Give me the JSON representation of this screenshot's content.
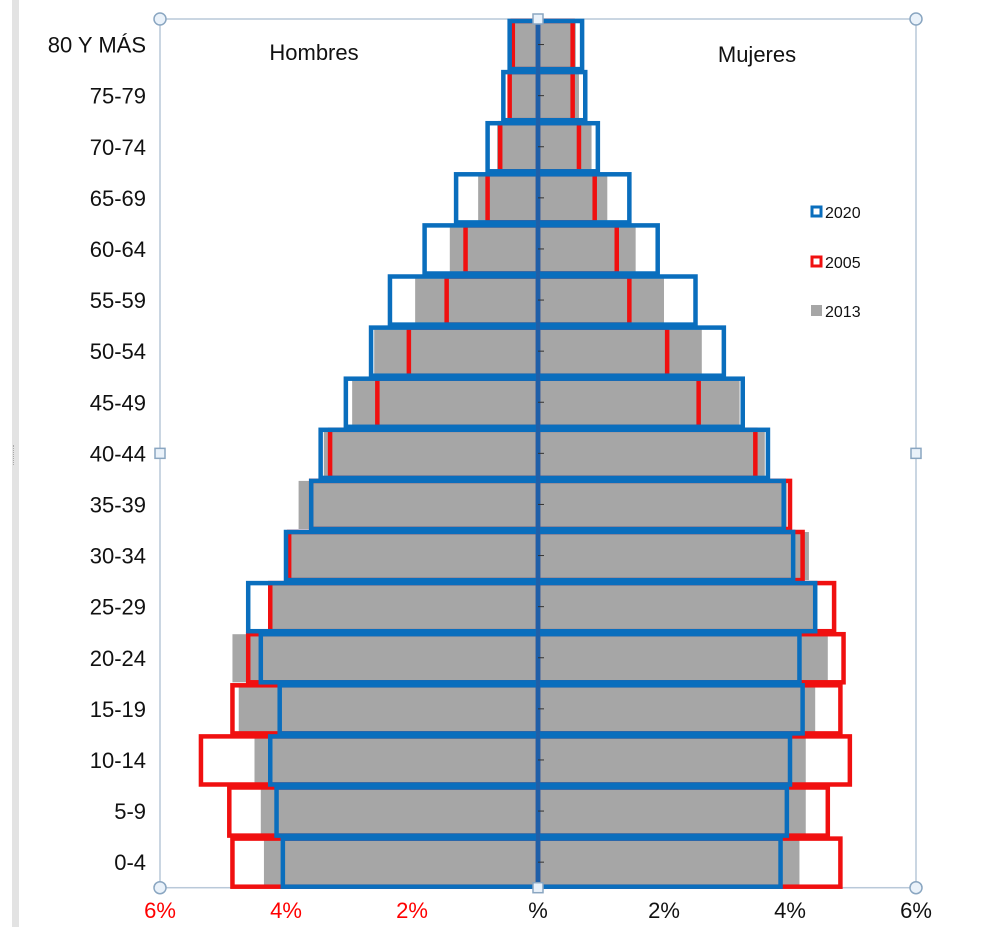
{
  "chart_data": {
    "type": "bar",
    "orientation": "horizontal",
    "subtype": "population-pyramid",
    "categories": [
      "0-4",
      "5-9",
      "10-14",
      "15-19",
      "20-24",
      "25-29",
      "30-34",
      "35-39",
      "40-44",
      "45-49",
      "50-54",
      "55-59",
      "60-64",
      "65-69",
      "70-74",
      "75-79",
      "80 Y MÁS"
    ],
    "side_labels": {
      "left": "Hombres",
      "right": "Mujeres"
    },
    "x_ticks": {
      "left": [
        "6%",
        "4%",
        "2%"
      ],
      "center": "%",
      "right": [
        "2%",
        "4%",
        "6%"
      ]
    },
    "xlim": [
      -6,
      6
    ],
    "grid": false,
    "legend": {
      "position": "right",
      "entries": [
        "2020",
        "2005",
        "2013"
      ]
    },
    "series": [
      {
        "name": "2020",
        "color": "#0a6ebd",
        "style": "outline",
        "men": [
          4.05,
          4.15,
          4.25,
          4.1,
          4.4,
          4.6,
          4.0,
          3.6,
          3.45,
          3.05,
          2.65,
          2.35,
          1.8,
          1.3,
          0.8,
          0.55,
          0.45
        ],
        "women": [
          3.85,
          3.95,
          4.0,
          4.2,
          4.15,
          4.4,
          4.05,
          3.9,
          3.65,
          3.25,
          2.95,
          2.5,
          1.9,
          1.45,
          0.95,
          0.75,
          0.7
        ]
      },
      {
        "name": "2005",
        "color": "#f01010",
        "style": "outline",
        "men": [
          4.85,
          4.9,
          5.35,
          4.85,
          4.6,
          4.25,
          3.95,
          3.6,
          3.3,
          2.55,
          2.05,
          1.45,
          1.15,
          0.8,
          0.6,
          0.45,
          0.4
        ],
        "women": [
          4.8,
          4.6,
          4.95,
          4.8,
          4.85,
          4.7,
          4.2,
          4.0,
          3.45,
          2.55,
          2.05,
          1.45,
          1.25,
          0.9,
          0.65,
          0.55,
          0.55
        ]
      },
      {
        "name": "2013",
        "color": "#a6a6a6",
        "style": "fill",
        "men": [
          4.35,
          4.4,
          4.5,
          4.75,
          4.85,
          4.25,
          3.95,
          3.8,
          3.4,
          2.95,
          2.6,
          1.95,
          1.4,
          0.95,
          0.65,
          0.45,
          0.4
        ],
        "women": [
          4.15,
          4.25,
          4.25,
          4.4,
          4.6,
          4.4,
          4.3,
          3.95,
          3.6,
          3.2,
          2.6,
          2.0,
          1.55,
          1.1,
          0.85,
          0.65,
          0.6
        ]
      }
    ]
  },
  "colors": {
    "left_tick_label": "#ff0000",
    "right_tick_label": "#111111",
    "axis": "#1f5fa8",
    "frame": "#b9c9d9"
  }
}
